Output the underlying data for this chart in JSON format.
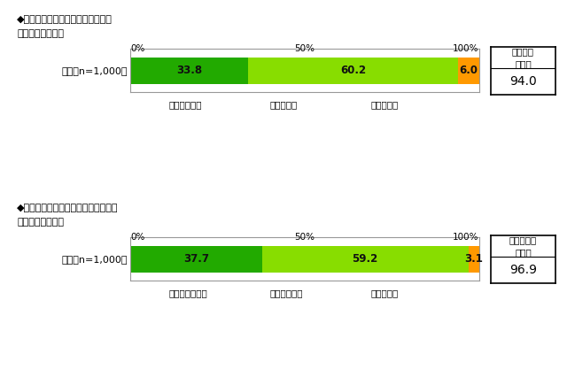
{
  "chart1": {
    "title_line1": "◆昨年の夏に家庭で節電を行ったか",
    "title_line2": "（単一回答形式）",
    "row_label": "全体［n=1,000］",
    "values": [
      33.8,
      60.2,
      6.0
    ],
    "colors": [
      "#22aa00",
      "#88dd00",
      "#ff9900"
    ],
    "legend_labels": [
      "積極的にした",
      "少しはした",
      "しなかった"
    ],
    "box_title": "節電した\n（計）",
    "box_value": "94.0"
  },
  "chart2": {
    "title_line1": "◆今年の夏に家庭で節電を行いたいか",
    "title_line2": "（単一回答形式）",
    "row_label": "全体［n=1,000］",
    "values": [
      37.7,
      59.2,
      3.1
    ],
    "colors": [
      "#22aa00",
      "#88dd00",
      "#ff9900"
    ],
    "legend_labels": [
      "積極的にしたい",
      "少しはしたい",
      "したくない"
    ],
    "box_title": "節電したい\n（計）",
    "box_value": "96.9"
  },
  "bg_color": "#ffffff",
  "text_color": "#000000",
  "axis_label_0": "0%",
  "axis_label_50": "50%",
  "axis_label_100": "100%",
  "bar_outline_color": "#aaaaaa",
  "legend_marker_size": 8
}
